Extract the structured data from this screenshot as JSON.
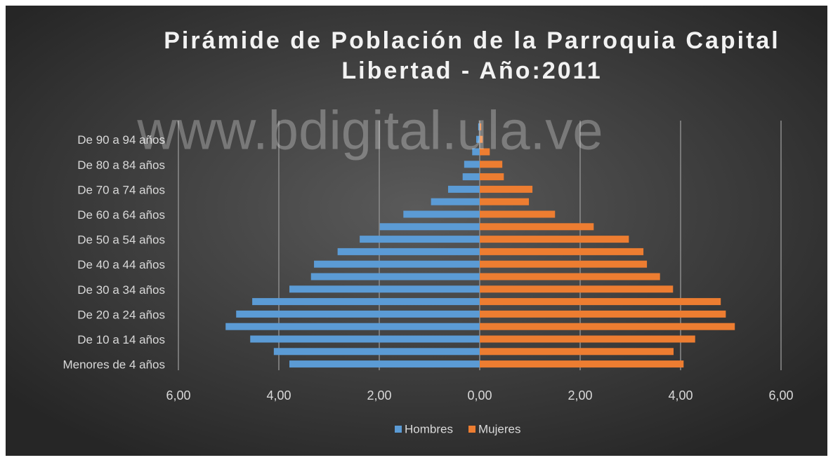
{
  "chart_data": {
    "type": "bar",
    "orientation": "horizontal",
    "title": [
      "Pirámide de Población de la Parroquia Capital",
      "Libertad - Año:2011"
    ],
    "annotation": "www.bdigital.ula.ve",
    "categories": [
      "Menores de 4 años",
      null,
      "De 10 a 14 años",
      null,
      "De 20 a 24 años",
      null,
      "De 30 a 34 años",
      null,
      "De 40 a 44 años",
      null,
      "De 50 a 54 años",
      null,
      "De 60 a 64 años",
      null,
      "De 70 a 74 años",
      null,
      "De 80 a 84 años",
      null,
      "De 90 a 94 años",
      null
    ],
    "series": [
      {
        "name": "Hombres",
        "color": "#5b9bd5",
        "values": [
          -3.79,
          -4.1,
          -4.57,
          -5.06,
          -4.85,
          -4.53,
          -3.79,
          -3.36,
          -3.3,
          -2.83,
          -2.39,
          -1.99,
          -1.52,
          -0.97,
          -0.63,
          -0.34,
          -0.31,
          -0.15,
          -0.07,
          -0.03
        ]
      },
      {
        "name": "Mujeres",
        "color": "#ed7d31",
        "values": [
          4.06,
          3.86,
          4.29,
          5.08,
          4.9,
          4.8,
          3.85,
          3.59,
          3.33,
          3.26,
          2.97,
          2.27,
          1.5,
          0.98,
          1.05,
          0.48,
          0.45,
          0.2,
          0.06,
          0.03
        ]
      }
    ],
    "xlim": [
      -6,
      6
    ],
    "xticks": [
      {
        "value": -6,
        "label": "6,00"
      },
      {
        "value": -4,
        "label": "4,00"
      },
      {
        "value": -2,
        "label": "2,00"
      },
      {
        "value": 0,
        "label": "0,00"
      },
      {
        "value": 2,
        "label": "2,00"
      },
      {
        "value": 4,
        "label": "4,00"
      },
      {
        "value": 6,
        "label": "6,00"
      }
    ],
    "grid": true,
    "legend": "bottom"
  }
}
